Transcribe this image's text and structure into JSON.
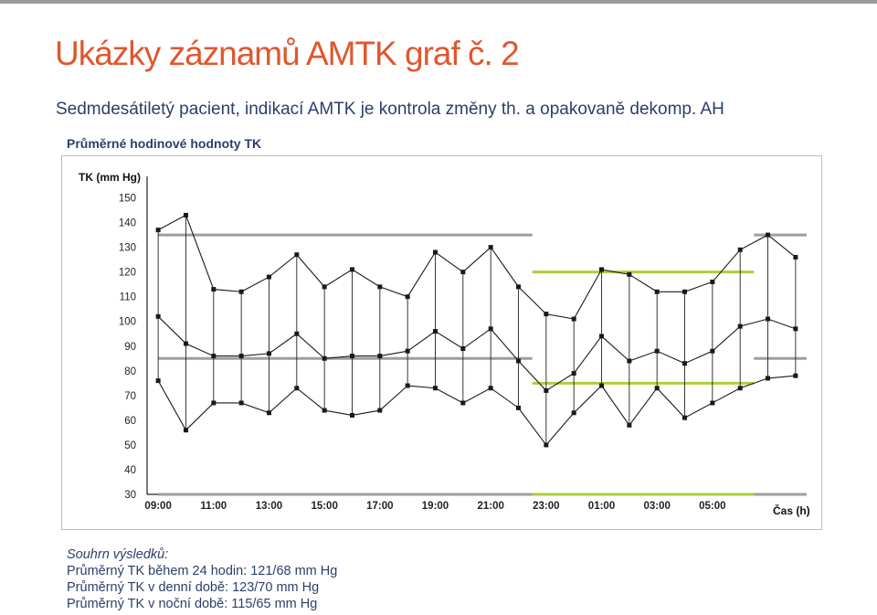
{
  "slide": {
    "title": "Ukázky záznamů AMTK graf č. 2",
    "subtitle": "Sedmdesátiletý pacient, indikací AMTK je kontrola změny th. a opakovaně dekomp. AH",
    "chart_label": "Průměrné hodinové hodnoty TK"
  },
  "summary": {
    "heading": "Souhrn výsledků:",
    "lines": [
      "Průměrný TK během 24 hodin: 121/68 mm Hg",
      "Průměrný TK v denní době: 123/70 mm Hg",
      "Průměrný TK v noční době: 115/65 mm Hg"
    ]
  },
  "chart_data": {
    "type": "line",
    "ylabel": "TK (mm Hg)",
    "xlabel": "Čas (h)",
    "ylim": [
      30,
      155
    ],
    "yticks": [
      150,
      140,
      130,
      120,
      110,
      100,
      90,
      80,
      70,
      60,
      50,
      40,
      30
    ],
    "x_tick_labels": [
      "09:00",
      "11:00",
      "13:00",
      "15:00",
      "17:00",
      "19:00",
      "21:00",
      "23:00",
      "01:00",
      "03:00",
      "05:00"
    ],
    "x_tick_hours": [
      9,
      11,
      13,
      15,
      17,
      19,
      21,
      23,
      25,
      27,
      29
    ],
    "x_range_hours": [
      8.6,
      32.4
    ],
    "x_hours": [
      9,
      10,
      11,
      12,
      13,
      14,
      15,
      16,
      17,
      18,
      19,
      20,
      21,
      22,
      23,
      24,
      25,
      26,
      27,
      28,
      29,
      30,
      31,
      32
    ],
    "series": [
      {
        "key": "systolic",
        "values": [
          137,
          143,
          113,
          112,
          118,
          127,
          114,
          121,
          114,
          110,
          128,
          120,
          130,
          114,
          103,
          101,
          121,
          119,
          112,
          112,
          116,
          129,
          135,
          126
        ]
      },
      {
        "key": "mean",
        "values": [
          102,
          91,
          86,
          86,
          87,
          95,
          85,
          86,
          86,
          88,
          96,
          89,
          97,
          84,
          72,
          79,
          94,
          84,
          88,
          83,
          88,
          98,
          101,
          97
        ]
      },
      {
        "key": "diastolic",
        "values": [
          76,
          56,
          67,
          67,
          63,
          73,
          64,
          62,
          64,
          74,
          73,
          67,
          73,
          65,
          50,
          63,
          74,
          58,
          73,
          61,
          67,
          73,
          77,
          78
        ]
      }
    ],
    "reference_lines": [
      {
        "period": "day",
        "color": "#9e9e9e",
        "x_from": 9,
        "x_to": 22.5,
        "values": [
          135,
          85,
          30
        ]
      },
      {
        "period": "night",
        "color": "#a9cf3b",
        "x_from": 22.5,
        "x_to": 30.5,
        "values": [
          120,
          75,
          30
        ]
      },
      {
        "period": "day",
        "color": "#9e9e9e",
        "x_from": 30.5,
        "x_to": 32.4,
        "values": [
          135,
          85,
          30
        ]
      }
    ],
    "colors": {
      "series": "#1a1a1a",
      "day_limit": "#9e9e9e",
      "night_limit": "#a9cf3b"
    },
    "grid": false
  }
}
